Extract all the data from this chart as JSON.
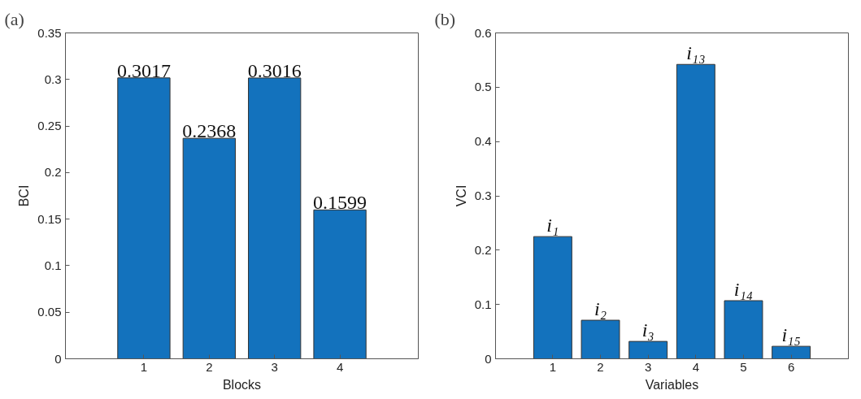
{
  "chart_data": [
    {
      "type": "bar",
      "title": "(a)",
      "xlabel": "Blocks",
      "ylabel": "BCI",
      "x": [
        1,
        2,
        3,
        4
      ],
      "values": [
        0.3017,
        0.2368,
        0.3016,
        0.1599
      ],
      "color": "#1372bd",
      "data_labels": true,
      "xlim": [
        -0.2,
        5.2
      ],
      "xticks": [
        1,
        2,
        3,
        4
      ],
      "ylim": [
        0,
        0.35
      ],
      "yticks": [
        0,
        0.05,
        0.1,
        0.15,
        0.2,
        0.25,
        0.3,
        0.35
      ],
      "grid": false
    },
    {
      "type": "bar",
      "title": "(b)",
      "xlabel": "Variables",
      "ylabel": "VCI",
      "x": [
        1,
        2,
        3,
        4,
        5,
        6
      ],
      "values": [
        0.225,
        0.071,
        0.032,
        0.542,
        0.107,
        0.023
      ],
      "color": "#1372bd",
      "value_labels": [
        "i₁",
        "i₂",
        "i₃",
        "i₁₃",
        "i₁₄",
        "i₁₅"
      ],
      "xlim": [
        -0.2,
        7.2
      ],
      "xticks": [
        1,
        2,
        3,
        4,
        5,
        6
      ],
      "ylim": [
        0,
        0.6
      ],
      "yticks": [
        0,
        0.1,
        0.2,
        0.3,
        0.4,
        0.5,
        0.6
      ],
      "grid": false
    }
  ]
}
